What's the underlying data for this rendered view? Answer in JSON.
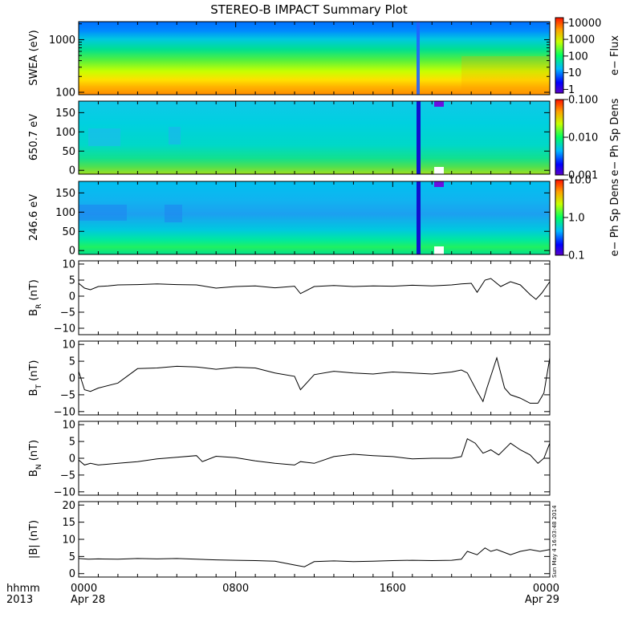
{
  "title": "STEREO-B IMPACT Summary Plot",
  "stamp": "Sun May  4 16:03:48 2014",
  "time_axis": {
    "label_line1": "hhmm",
    "label_line2": "2013",
    "ticks": [
      {
        "hour": 0,
        "label": "0000",
        "sublabel": "Apr 28"
      },
      {
        "hour": 8,
        "label": "0800",
        "sublabel": ""
      },
      {
        "hour": 16,
        "label": "1600",
        "sublabel": ""
      },
      {
        "hour": 24,
        "label": "0000",
        "sublabel": "Apr 29"
      }
    ],
    "range_hours": [
      0,
      24
    ]
  },
  "chart_data": [
    {
      "type": "heatmap",
      "name": "swea",
      "ylabel": "SWEA (eV)",
      "yscale": "log",
      "ylim": [
        90,
        2200
      ],
      "yticks": [
        {
          "v": 100,
          "label": "100"
        },
        {
          "v": 1000,
          "label": "1000"
        }
      ],
      "colorbar": {
        "label": "e− Flux",
        "scale": "log",
        "range": [
          0.6,
          20000
        ],
        "ticks": [
          {
            "v": 1,
            "label": "1"
          },
          {
            "v": 10,
            "label": "10"
          },
          {
            "v": 100,
            "label": "100"
          },
          {
            "v": 1000,
            "label": "1000"
          },
          {
            "v": 10000,
            "label": "10000"
          }
        ]
      }
    },
    {
      "type": "heatmap",
      "name": "pad650",
      "ylabel": "650.7 eV",
      "yscale": "linear",
      "ylim": [
        -10,
        180
      ],
      "yticks": [
        {
          "v": 0,
          "label": "0"
        },
        {
          "v": 50,
          "label": "50"
        },
        {
          "v": 100,
          "label": "100"
        },
        {
          "v": 150,
          "label": "150"
        }
      ],
      "colorbar": {
        "label": "e− Ph Sp Dens",
        "scale": "log",
        "range": [
          0.001,
          0.1
        ],
        "ticks": [
          {
            "v": 0.001,
            "label": "0.001"
          },
          {
            "v": 0.01,
            "label": "0.010"
          },
          {
            "v": 0.1,
            "label": "0.100"
          }
        ]
      }
    },
    {
      "type": "heatmap",
      "name": "pad246",
      "ylabel": "246.6 eV",
      "yscale": "linear",
      "ylim": [
        -10,
        180
      ],
      "yticks": [
        {
          "v": 0,
          "label": "0"
        },
        {
          "v": 50,
          "label": "50"
        },
        {
          "v": 100,
          "label": "100"
        },
        {
          "v": 150,
          "label": "150"
        }
      ],
      "colorbar": {
        "label": "e− Ph Sp Dens",
        "scale": "log",
        "range": [
          0.1,
          10
        ],
        "ticks": [
          {
            "v": 0.1,
            "label": "0.1"
          },
          {
            "v": 1,
            "label": "1.0"
          },
          {
            "v": 10,
            "label": "10.0"
          }
        ]
      }
    },
    {
      "type": "line",
      "name": "br",
      "ylabel": "B",
      "ylabel_sub": "R",
      "ylabel_suffix": "(nT)",
      "ylim": [
        -12,
        11
      ],
      "yticks": [
        {
          "v": -10,
          "label": "−10"
        },
        {
          "v": -5,
          "label": "−5"
        },
        {
          "v": 0,
          "label": "0"
        },
        {
          "v": 5,
          "label": "5"
        },
        {
          "v": 10,
          "label": "10"
        }
      ],
      "x": [
        0,
        0.3,
        0.6,
        1,
        1.5,
        2,
        3,
        4,
        5,
        6,
        7,
        8,
        9,
        10,
        11,
        11.3,
        12,
        13,
        14,
        15,
        16,
        17,
        18,
        19,
        19.5,
        20,
        20.3,
        20.7,
        21,
        21.5,
        22,
        22.5,
        23,
        23.3,
        23.6,
        24
      ],
      "y": [
        4,
        2.5,
        2,
        3,
        3.2,
        3.5,
        3.6,
        3.8,
        3.6,
        3.5,
        2.5,
        3.0,
        3.2,
        2.6,
        3.1,
        0.8,
        3.0,
        3.3,
        3.0,
        3.2,
        3.1,
        3.4,
        3.2,
        3.5,
        3.8,
        4,
        1.2,
        5,
        5.5,
        3,
        4.5,
        3.5,
        0.5,
        -1,
        1,
        4.5
      ]
    },
    {
      "type": "line",
      "name": "bt",
      "ylabel": "B",
      "ylabel_sub": "T",
      "ylabel_suffix": "(nT)",
      "ylim": [
        -11,
        11
      ],
      "yticks": [
        {
          "v": -10,
          "label": "−10"
        },
        {
          "v": -5,
          "label": "−5"
        },
        {
          "v": 0,
          "label": "0"
        },
        {
          "v": 5,
          "label": "5"
        },
        {
          "v": 10,
          "label": "10"
        }
      ],
      "x": [
        0,
        0.3,
        0.6,
        1,
        2,
        3,
        4,
        5,
        6,
        7,
        8,
        9,
        10,
        11,
        11.3,
        12,
        13,
        14,
        15,
        16,
        17,
        18,
        19,
        19.5,
        19.8,
        20.3,
        20.6,
        20.8,
        21.3,
        21.7,
        22,
        22.5,
        23,
        23.4,
        23.7,
        24
      ],
      "y": [
        2,
        -3.5,
        -4,
        -3,
        -1.5,
        2.8,
        3.0,
        3.5,
        3.3,
        2.6,
        3.2,
        3.0,
        1.5,
        0.5,
        -3.5,
        1.0,
        2.0,
        1.5,
        1.2,
        1.8,
        1.5,
        1.2,
        1.8,
        2.4,
        1.5,
        -4.0,
        -7.0,
        -3.0,
        6.0,
        -3.0,
        -5.0,
        -6.0,
        -7.5,
        -7.5,
        -4.5,
        6.0
      ]
    },
    {
      "type": "line",
      "name": "bn",
      "ylabel": "B",
      "ylabel_sub": "N",
      "ylabel_suffix": "(nT)",
      "ylim": [
        -11,
        11
      ],
      "yticks": [
        {
          "v": -10,
          "label": "−10"
        },
        {
          "v": -5,
          "label": "−5"
        },
        {
          "v": 0,
          "label": "0"
        },
        {
          "v": 5,
          "label": "5"
        },
        {
          "v": 10,
          "label": "10"
        }
      ],
      "x": [
        0,
        0.3,
        0.6,
        1,
        2,
        3,
        4,
        5,
        6,
        6.3,
        7,
        8,
        9,
        10,
        11,
        11.3,
        12,
        13,
        14,
        15,
        16,
        17,
        18,
        19,
        19.5,
        19.8,
        20.2,
        20.6,
        21,
        21.4,
        22,
        22.5,
        23,
        23.4,
        23.7,
        24
      ],
      "y": [
        -0.5,
        -2.0,
        -1.5,
        -2.0,
        -1.5,
        -1.0,
        -0.2,
        0.3,
        0.8,
        -1.0,
        0.6,
        0.2,
        -0.8,
        -1.5,
        -2.0,
        -1.0,
        -1.5,
        0.5,
        1.2,
        0.8,
        0.5,
        -0.2,
        0.0,
        0.0,
        0.5,
        5.8,
        4.5,
        1.5,
        2.5,
        1.0,
        4.5,
        2.5,
        1.0,
        -1.5,
        0.0,
        4.5
      ]
    },
    {
      "type": "line",
      "name": "bmag",
      "ylabel": "|B| (nT)",
      "ylim": [
        -1,
        21
      ],
      "yticks": [
        {
          "v": 0,
          "label": "0"
        },
        {
          "v": 5,
          "label": "5"
        },
        {
          "v": 10,
          "label": "10"
        },
        {
          "v": 15,
          "label": "15"
        },
        {
          "v": 20,
          "label": "20"
        }
      ],
      "x": [
        0,
        0.5,
        1,
        2,
        3,
        4,
        5,
        6,
        7,
        8,
        9,
        10,
        11,
        11.5,
        12,
        13,
        14,
        15,
        16,
        17,
        18,
        19,
        19.5,
        19.8,
        20.3,
        20.7,
        21,
        21.3,
        22,
        22.5,
        23,
        23.5,
        24
      ],
      "y": [
        4.4,
        4.2,
        4.3,
        4.2,
        4.4,
        4.3,
        4.4,
        4.2,
        4.0,
        3.9,
        3.8,
        3.6,
        2.5,
        2.0,
        3.5,
        3.7,
        3.5,
        3.6,
        3.8,
        3.9,
        3.8,
        3.9,
        4.2,
        6.5,
        5.5,
        7.5,
        6.5,
        7.0,
        5.5,
        6.5,
        7.0,
        6.5,
        7.0
      ]
    }
  ]
}
